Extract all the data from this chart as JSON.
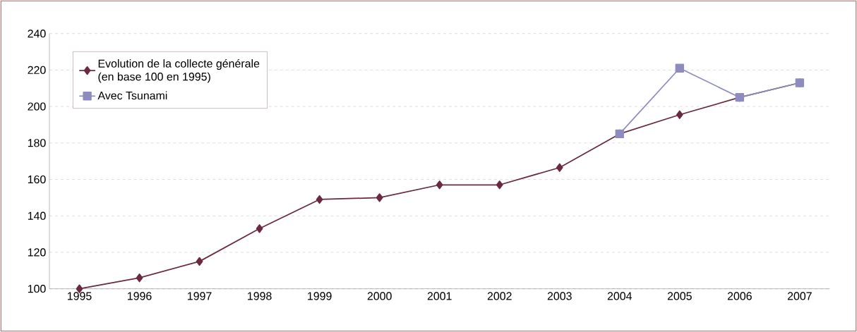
{
  "chart_data": {
    "type": "line",
    "categories": [
      "1995",
      "1996",
      "1997",
      "1998",
      "1999",
      "2000",
      "2001",
      "2002",
      "2003",
      "2004",
      "2005",
      "2006",
      "2007"
    ],
    "series": [
      {
        "name": "Evolution de la collecte générale\n(en base 100 en 1995)",
        "color": "#6b2a3e",
        "marker": "diamond",
        "values": [
          100,
          106,
          115,
          133,
          149,
          150,
          157,
          157,
          166.5,
          185,
          195.5,
          205,
          213
        ]
      },
      {
        "name": "Avec Tsunami",
        "color": "#8e8cbf",
        "marker": "square",
        "values": [
          null,
          null,
          null,
          null,
          null,
          null,
          null,
          null,
          null,
          185,
          221,
          205,
          213
        ]
      }
    ],
    "ylim": [
      100,
      240
    ],
    "yticks": [
      100,
      120,
      140,
      160,
      180,
      200,
      220,
      240
    ],
    "grid": "y",
    "legend": "top left"
  }
}
